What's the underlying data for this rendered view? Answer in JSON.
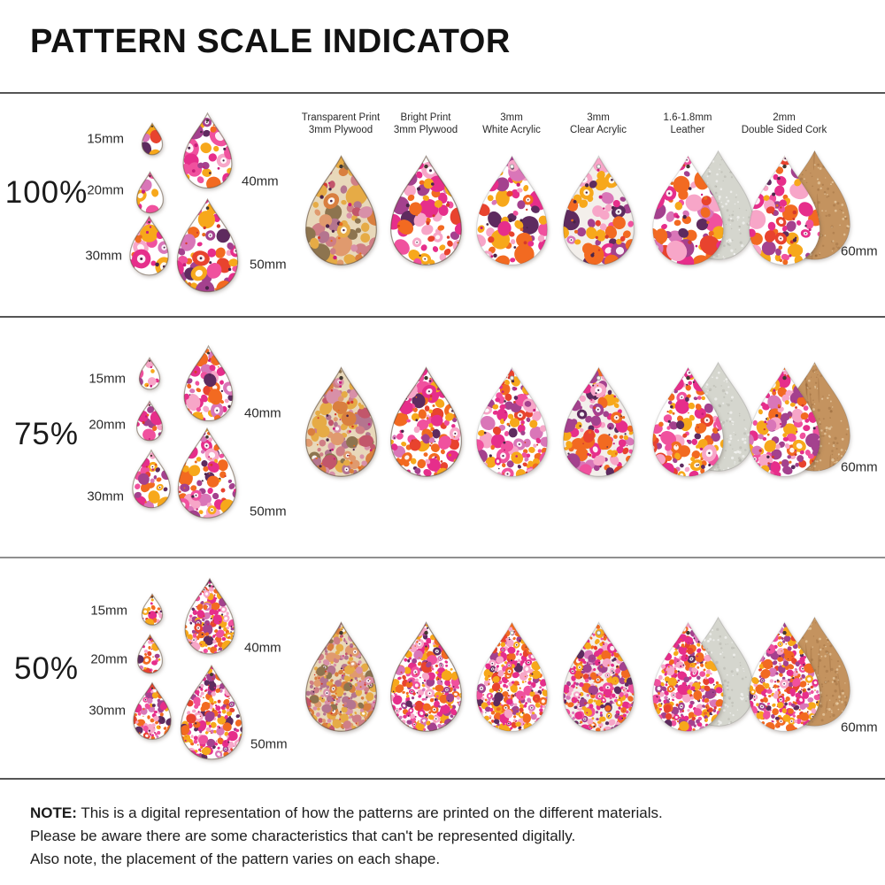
{
  "title": "PATTERN SCALE INDICATOR",
  "materials": [
    {
      "id": "transparent-plywood",
      "label": [
        "Transparent Print",
        "3mm Plywood"
      ]
    },
    {
      "id": "bright-plywood",
      "label": [
        "Bright Print",
        "3mm Plywood"
      ]
    },
    {
      "id": "white-acrylic",
      "label": [
        "3mm",
        "White Acrylic"
      ]
    },
    {
      "id": "clear-acrylic",
      "label": [
        "3mm",
        "Clear Acrylic"
      ]
    },
    {
      "id": "leather",
      "label": [
        "1.6-1.8mm",
        "Leather"
      ]
    },
    {
      "id": "cork",
      "label": [
        "2mm",
        "Double Sided Cork"
      ]
    }
  ],
  "rows": [
    {
      "scale_label": "100%",
      "pattern_scale": 1.0
    },
    {
      "scale_label": "75%",
      "pattern_scale": 0.75
    },
    {
      "scale_label": "50%",
      "pattern_scale": 0.5
    }
  ],
  "size_labels": {
    "s15": "15mm",
    "s20": "20mm",
    "s30": "30mm",
    "s40": "40mm",
    "s50": "50mm",
    "s60": "60mm"
  },
  "note": {
    "label": "NOTE:",
    "lines": [
      "This is a digital representation of how the patterns are printed on the different materials.",
      "Please be aware there are some characteristics that can't be represented digitally.",
      "Also note, the placement of the pattern varies on each shape."
    ]
  },
  "palette": {
    "bright": [
      "#e62e8b",
      "#f0519e",
      "#f7a6c8",
      "#f26a21",
      "#f7a81b",
      "#a4418e",
      "#5e2b5f",
      "#e8432e",
      "#d976b8"
    ],
    "muted": [
      "#cf7f86",
      "#e09a6e",
      "#e6ab46",
      "#d97f3f",
      "#8d744f",
      "#d890a8",
      "#b4758f",
      "#c2566b"
    ],
    "speck_colors": [
      "#4a2448",
      "#d43a2a",
      "#e86a1e",
      "#c81f7a"
    ],
    "wood_bg": "#e8d8ba",
    "clear_bg": "#f3efeb",
    "white_bg": "#ffffff",
    "leather_back": "#d5d6ce",
    "cork_back": "#c4935f",
    "separator_dark": "#555555",
    "separator_light": "#8f8f8f",
    "hole": "#423931"
  }
}
